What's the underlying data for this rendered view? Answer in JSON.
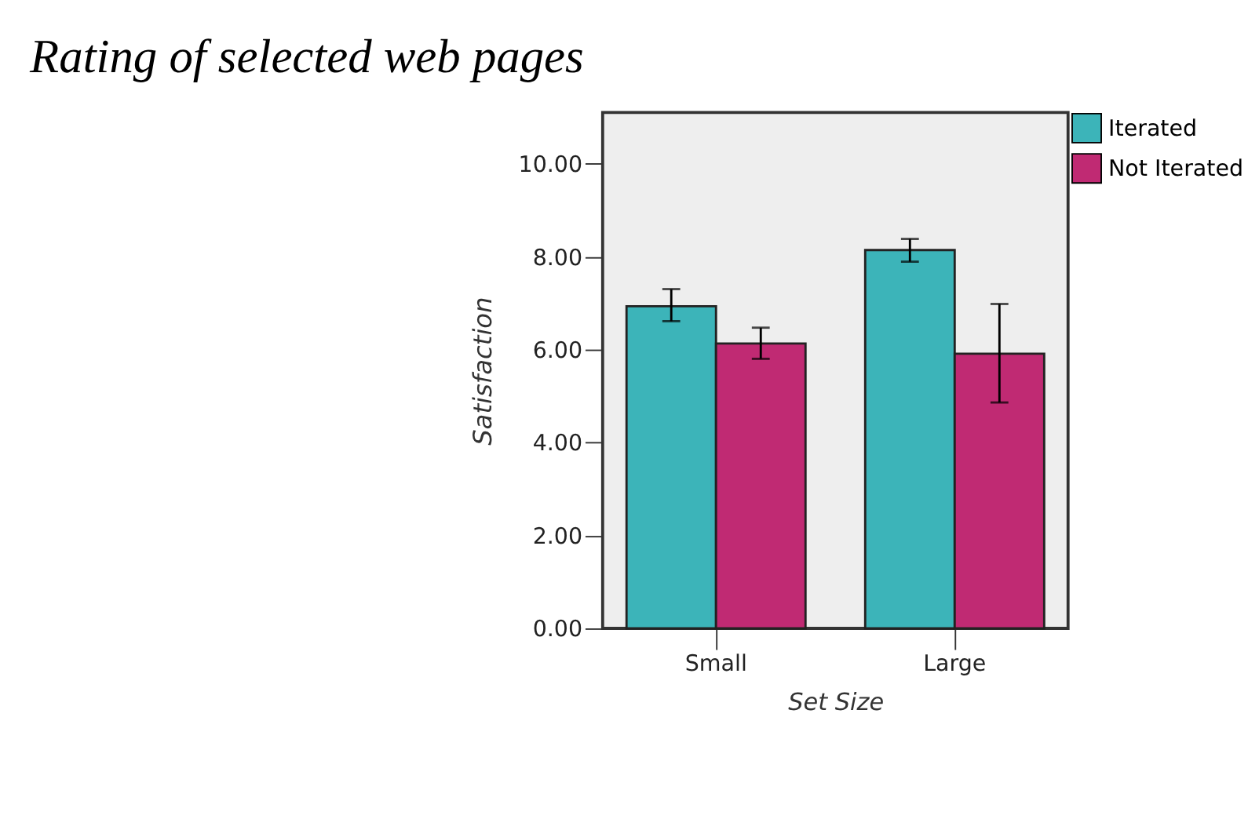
{
  "chart_data": {
    "type": "bar",
    "title": "Rating of selected web pages",
    "xlabel": "Set Size",
    "ylabel": "Satisfaction",
    "categories": [
      "Small",
      "Large"
    ],
    "series": [
      {
        "name": "Iterated",
        "color": "#3cb4b9",
        "values": [
          6.93,
          8.14
        ],
        "errors": [
          [
            6.61,
            7.3
          ],
          [
            7.89,
            8.38
          ]
        ]
      },
      {
        "name": "Not Iterated",
        "color": "#c02a73",
        "values": [
          6.13,
          5.91
        ],
        "errors": [
          [
            5.8,
            6.47
          ],
          [
            4.86,
            6.98
          ]
        ]
      }
    ],
    "ylim": [
      0,
      11.1
    ],
    "yticks": [
      {
        "value": 0,
        "label": "0.00"
      },
      {
        "value": 2,
        "label": "2.00"
      },
      {
        "value": 4,
        "label": "4.00"
      },
      {
        "value": 6,
        "label": "6.00"
      },
      {
        "value": 8,
        "label": "8.00"
      },
      {
        "value": 10,
        "label": "10.00"
      }
    ],
    "grid": false,
    "legend": "top right"
  }
}
